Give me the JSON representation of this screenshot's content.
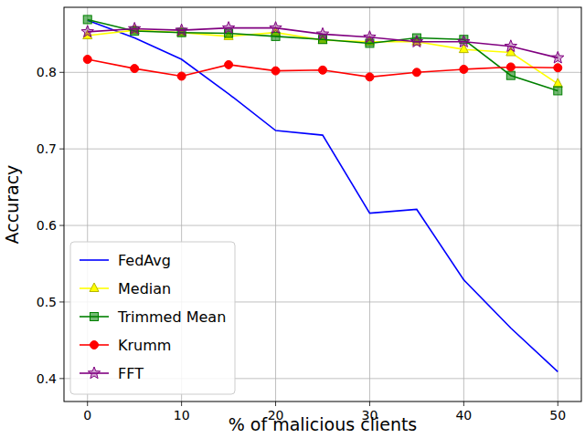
{
  "chart_data": {
    "type": "line",
    "x_label": "% of malicious clients",
    "y_label": "Accuracy",
    "x": [
      0,
      5,
      10,
      15,
      20,
      25,
      30,
      35,
      40,
      45,
      50
    ],
    "xlim": [
      -2.5,
      52.5
    ],
    "xticks": [
      0,
      10,
      20,
      30,
      40,
      50
    ],
    "ylim": [
      0.37,
      0.885
    ],
    "yticks": [
      0.4,
      0.5,
      0.6,
      0.7,
      0.8
    ],
    "grid": true,
    "legend": "lower left",
    "series": [
      {
        "name": "FedAvg",
        "color": "#0000ff",
        "marker": "none",
        "values": [
          0.868,
          0.845,
          0.817,
          0.772,
          0.724,
          0.718,
          0.616,
          0.621,
          0.529,
          0.466,
          0.409
        ]
      },
      {
        "name": "Median",
        "color": "#ffff00",
        "marker": "triangle",
        "values": [
          0.848,
          0.855,
          0.852,
          0.847,
          0.852,
          0.842,
          0.84,
          0.84,
          0.83,
          0.826,
          0.785
        ]
      },
      {
        "name": "Trimmed Mean",
        "color": "#008000",
        "marker": "square",
        "values": [
          0.869,
          0.854,
          0.852,
          0.851,
          0.847,
          0.843,
          0.838,
          0.845,
          0.843,
          0.796,
          0.776
        ]
      },
      {
        "name": "Krumm",
        "color": "#ff0000",
        "marker": "circle",
        "values": [
          0.817,
          0.805,
          0.795,
          0.81,
          0.802,
          0.803,
          0.794,
          0.8,
          0.804,
          0.807,
          0.806
        ]
      },
      {
        "name": "FFT",
        "color": "#800080",
        "marker": "star",
        "values": [
          0.853,
          0.857,
          0.855,
          0.858,
          0.858,
          0.85,
          0.846,
          0.84,
          0.84,
          0.834,
          0.819
        ]
      }
    ]
  }
}
